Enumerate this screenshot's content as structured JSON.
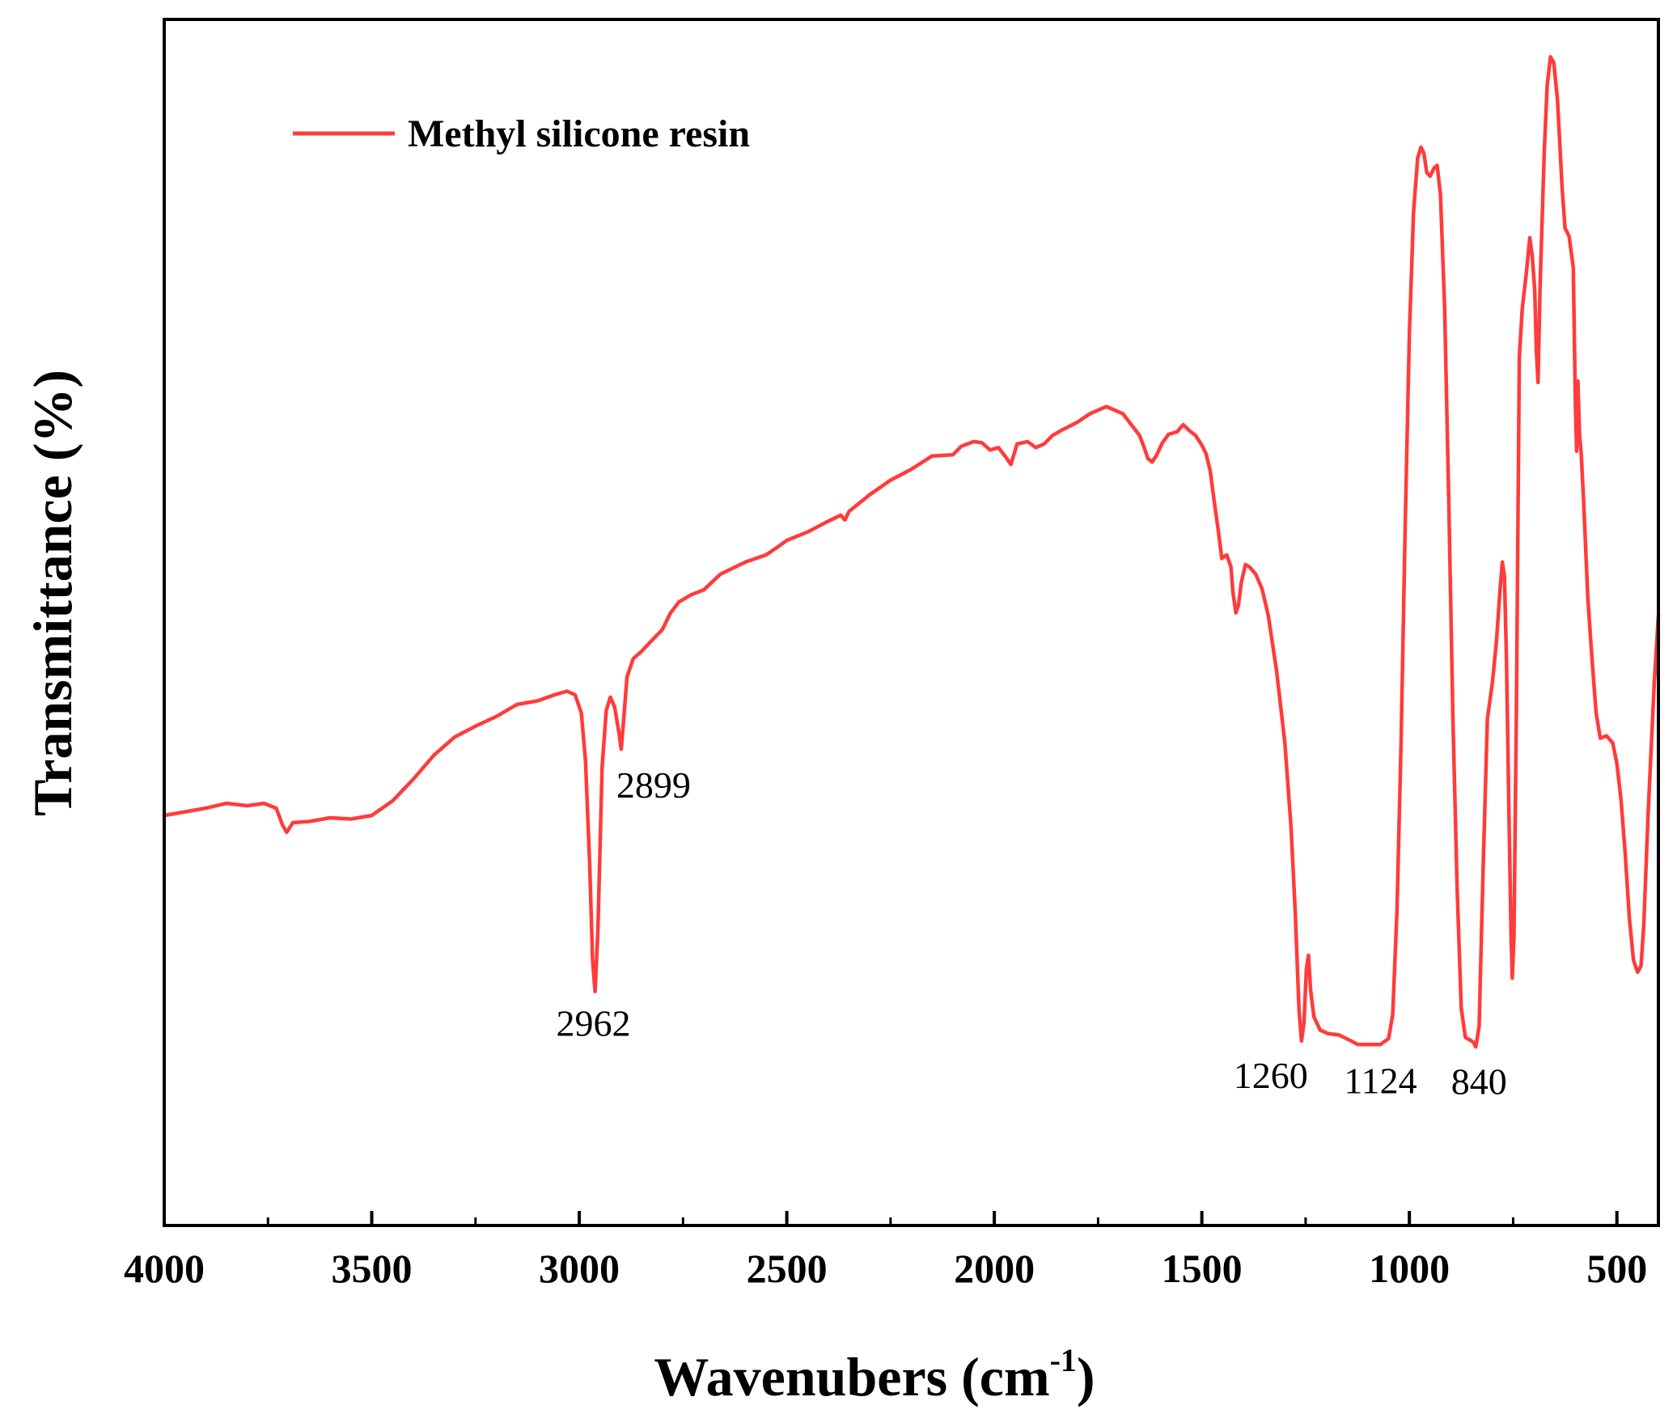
{
  "chart_data": {
    "type": "line",
    "title": "",
    "xlabel": "Wavenubers (cm",
    "xlabel_sup": "-1",
    "xlabel_close": ")",
    "ylabel": "Transmittance (%)",
    "xlim": [
      4000,
      400
    ],
    "ylim": [
      0,
      100
    ],
    "x_ticks": [
      4000,
      3500,
      3000,
      2500,
      2000,
      1500,
      1000,
      500
    ],
    "x_tick_labels": [
      "4000",
      "3500",
      "3000",
      "2500",
      "2000",
      "1500",
      "1000",
      "500"
    ],
    "x_minor_ticks": [
      3750,
      3250,
      2750,
      2250,
      1750,
      1250,
      750
    ],
    "grid": false,
    "legend": {
      "position": "top-left",
      "entries": [
        "Methyl silicone resin"
      ]
    },
    "series": [
      {
        "name": "Methyl silicone resin",
        "color": "#ff3b3b",
        "points": [
          [
            4000,
            34.0
          ],
          [
            3900,
            34.6
          ],
          [
            3850,
            35.0
          ],
          [
            3800,
            34.8
          ],
          [
            3760,
            35.0
          ],
          [
            3730,
            34.6
          ],
          [
            3715,
            33.2
          ],
          [
            3705,
            32.6
          ],
          [
            3690,
            33.4
          ],
          [
            3650,
            33.5
          ],
          [
            3600,
            33.8
          ],
          [
            3550,
            33.7
          ],
          [
            3500,
            34.0
          ],
          [
            3450,
            35.2
          ],
          [
            3400,
            37.0
          ],
          [
            3350,
            39.0
          ],
          [
            3300,
            40.5
          ],
          [
            3250,
            41.4
          ],
          [
            3200,
            42.2
          ],
          [
            3150,
            43.2
          ],
          [
            3100,
            43.5
          ],
          [
            3060,
            44.0
          ],
          [
            3030,
            44.3
          ],
          [
            3010,
            44.0
          ],
          [
            2995,
            42.5
          ],
          [
            2985,
            38.5
          ],
          [
            2975,
            30.0
          ],
          [
            2968,
            22.0
          ],
          [
            2962,
            19.4
          ],
          [
            2955,
            24.5
          ],
          [
            2945,
            38.0
          ],
          [
            2935,
            42.7
          ],
          [
            2925,
            43.8
          ],
          [
            2915,
            43.0
          ],
          [
            2905,
            41.0
          ],
          [
            2899,
            39.5
          ],
          [
            2893,
            42.0
          ],
          [
            2885,
            45.5
          ],
          [
            2870,
            47.0
          ],
          [
            2850,
            47.6
          ],
          [
            2820,
            48.7
          ],
          [
            2800,
            49.4
          ],
          [
            2780,
            50.8
          ],
          [
            2760,
            51.7
          ],
          [
            2730,
            52.3
          ],
          [
            2700,
            52.7
          ],
          [
            2660,
            54.0
          ],
          [
            2600,
            55.0
          ],
          [
            2550,
            55.6
          ],
          [
            2520,
            56.3
          ],
          [
            2500,
            56.8
          ],
          [
            2450,
            57.5
          ],
          [
            2400,
            58.4
          ],
          [
            2370,
            58.9
          ],
          [
            2360,
            58.5
          ],
          [
            2350,
            59.2
          ],
          [
            2300,
            60.6
          ],
          [
            2250,
            61.8
          ],
          [
            2200,
            62.7
          ],
          [
            2150,
            63.8
          ],
          [
            2100,
            63.9
          ],
          [
            2080,
            64.6
          ],
          [
            2050,
            65.0
          ],
          [
            2030,
            64.9
          ],
          [
            2010,
            64.3
          ],
          [
            1990,
            64.5
          ],
          [
            1970,
            63.6
          ],
          [
            1960,
            63.1
          ],
          [
            1945,
            64.8
          ],
          [
            1920,
            65.0
          ],
          [
            1900,
            64.5
          ],
          [
            1880,
            64.8
          ],
          [
            1860,
            65.5
          ],
          [
            1840,
            65.9
          ],
          [
            1800,
            66.6
          ],
          [
            1770,
            67.3
          ],
          [
            1750,
            67.6
          ],
          [
            1730,
            67.9
          ],
          [
            1710,
            67.6
          ],
          [
            1690,
            67.3
          ],
          [
            1670,
            66.4
          ],
          [
            1650,
            65.5
          ],
          [
            1640,
            64.6
          ],
          [
            1630,
            63.6
          ],
          [
            1620,
            63.3
          ],
          [
            1610,
            63.8
          ],
          [
            1595,
            64.9
          ],
          [
            1580,
            65.6
          ],
          [
            1560,
            65.8
          ],
          [
            1545,
            66.4
          ],
          [
            1530,
            65.9
          ],
          [
            1515,
            65.5
          ],
          [
            1500,
            64.7
          ],
          [
            1490,
            64.0
          ],
          [
            1480,
            62.6
          ],
          [
            1470,
            60.0
          ],
          [
            1460,
            57.5
          ],
          [
            1452,
            55.3
          ],
          [
            1445,
            55.5
          ],
          [
            1440,
            55.6
          ],
          [
            1430,
            54.6
          ],
          [
            1425,
            52.5
          ],
          [
            1418,
            50.8
          ],
          [
            1412,
            51.4
          ],
          [
            1405,
            53.3
          ],
          [
            1395,
            54.8
          ],
          [
            1385,
            54.6
          ],
          [
            1370,
            54.0
          ],
          [
            1355,
            52.8
          ],
          [
            1340,
            50.6
          ],
          [
            1320,
            46.0
          ],
          [
            1300,
            40.0
          ],
          [
            1285,
            33.0
          ],
          [
            1275,
            26.0
          ],
          [
            1266,
            18.0
          ],
          [
            1260,
            15.3
          ],
          [
            1254,
            16.8
          ],
          [
            1248,
            21.3
          ],
          [
            1243,
            22.4
          ],
          [
            1238,
            19.5
          ],
          [
            1230,
            17.3
          ],
          [
            1215,
            16.2
          ],
          [
            1195,
            15.9
          ],
          [
            1170,
            15.8
          ],
          [
            1140,
            15.3
          ],
          [
            1124,
            15.0
          ],
          [
            1100,
            15.0
          ],
          [
            1070,
            15.0
          ],
          [
            1050,
            15.5
          ],
          [
            1040,
            17.5
          ],
          [
            1030,
            26.0
          ],
          [
            1020,
            40.0
          ],
          [
            1010,
            58.0
          ],
          [
            1000,
            74.0
          ],
          [
            990,
            84.0
          ],
          [
            980,
            88.5
          ],
          [
            972,
            89.4
          ],
          [
            965,
            88.9
          ],
          [
            958,
            87.3
          ],
          [
            950,
            87.0
          ],
          [
            940,
            87.7
          ],
          [
            933,
            87.9
          ],
          [
            925,
            85.5
          ],
          [
            915,
            76.0
          ],
          [
            905,
            60.0
          ],
          [
            895,
            42.0
          ],
          [
            885,
            28.0
          ],
          [
            875,
            18.0
          ],
          [
            865,
            15.6
          ],
          [
            855,
            15.4
          ],
          [
            846,
            15.2
          ],
          [
            840,
            14.8
          ],
          [
            832,
            16.5
          ],
          [
            822,
            30.0
          ],
          [
            812,
            42.0
          ],
          [
            800,
            45.0
          ],
          [
            790,
            48.5
          ],
          [
            782,
            52.5
          ],
          [
            776,
            55.0
          ],
          [
            771,
            53.8
          ],
          [
            766,
            47.0
          ],
          [
            760,
            34.0
          ],
          [
            755,
            24.0
          ],
          [
            752,
            20.5
          ],
          [
            748,
            24.0
          ],
          [
            742,
            43.0
          ],
          [
            735,
            72.0
          ],
          [
            728,
            76.0
          ],
          [
            718,
            79.0
          ],
          [
            710,
            81.9
          ],
          [
            704,
            80.4
          ],
          [
            698,
            77.6
          ],
          [
            694,
            72.5
          ],
          [
            690,
            69.9
          ],
          [
            685,
            78.0
          ],
          [
            675,
            89.0
          ],
          [
            668,
            94.5
          ],
          [
            660,
            96.9
          ],
          [
            652,
            96.4
          ],
          [
            643,
            93.3
          ],
          [
            632,
            86.0
          ],
          [
            625,
            82.7
          ],
          [
            615,
            82.0
          ],
          [
            605,
            79.4
          ],
          [
            600,
            68.0
          ],
          [
            597,
            64.2
          ],
          [
            594,
            70.0
          ],
          [
            590,
            65.6
          ],
          [
            586,
            64.0
          ],
          [
            580,
            60.0
          ],
          [
            570,
            52.0
          ],
          [
            560,
            47.0
          ],
          [
            550,
            42.5
          ],
          [
            540,
            40.4
          ],
          [
            525,
            40.6
          ],
          [
            510,
            40.0
          ],
          [
            500,
            38.3
          ],
          [
            490,
            35.3
          ],
          [
            480,
            30.8
          ],
          [
            470,
            25.5
          ],
          [
            460,
            22.0
          ],
          [
            450,
            21.0
          ],
          [
            442,
            21.5
          ],
          [
            435,
            25.0
          ],
          [
            425,
            34.0
          ],
          [
            410,
            45.0
          ],
          [
            400,
            50.6
          ]
        ]
      }
    ],
    "annotations": [
      {
        "text": "2962",
        "x": 2962,
        "y": 19.4
      },
      {
        "text": "2899",
        "x": 2899,
        "y": 39.5
      },
      {
        "text": "1260",
        "x": 1260,
        "y": 15.3
      },
      {
        "text": "1124",
        "x": 1124,
        "y": 15.0
      },
      {
        "text": "840",
        "x": 840,
        "y": 14.8
      }
    ]
  }
}
